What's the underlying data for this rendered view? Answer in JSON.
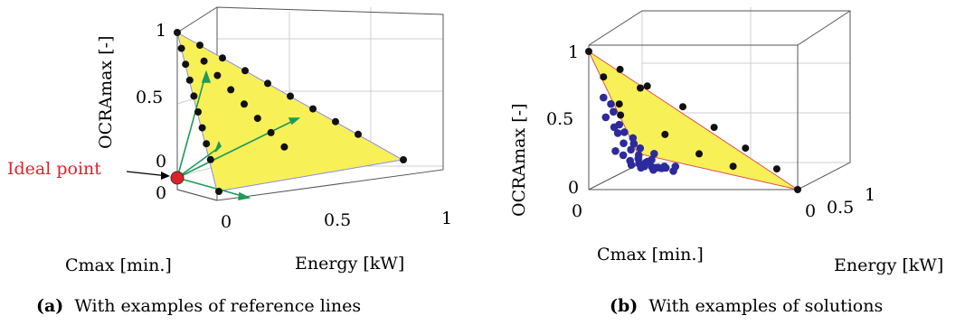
{
  "chart_data": [
    {
      "type": "scatter3d",
      "caption_tag": "(a)",
      "caption_text": "With examples of reference lines",
      "xlabel": "Cmax [min.]",
      "ylabel": "Energy [kW]",
      "zlabel": "OCRAmax [-]",
      "z_ticks": [
        "1",
        "0.5",
        "0"
      ],
      "x_ticks": [
        "0"
      ],
      "y_ticks": [
        "0",
        "0.5",
        "1"
      ],
      "annotation": "Ideal point",
      "surface_color": "#f7f057",
      "reference_line_color": "#1f9a5a",
      "ideal_point_color": "#e0202a",
      "reference_points": [
        [
          0.0,
          0.0,
          1.0
        ],
        [
          0.1,
          0.0,
          0.9
        ],
        [
          0.0,
          0.1,
          0.9
        ],
        [
          0.2,
          0.0,
          0.8
        ],
        [
          0.0,
          0.2,
          0.8
        ],
        [
          0.1,
          0.1,
          0.8
        ],
        [
          0.3,
          0.0,
          0.7
        ],
        [
          0.0,
          0.3,
          0.7
        ],
        [
          0.15,
          0.15,
          0.7
        ],
        [
          0.4,
          0.0,
          0.6
        ],
        [
          0.0,
          0.4,
          0.6
        ],
        [
          0.2,
          0.2,
          0.6
        ],
        [
          0.5,
          0.0,
          0.5
        ],
        [
          0.0,
          0.5,
          0.5
        ],
        [
          0.25,
          0.25,
          0.5
        ],
        [
          0.6,
          0.0,
          0.4
        ],
        [
          0.0,
          0.6,
          0.4
        ],
        [
          0.3,
          0.3,
          0.4
        ],
        [
          0.7,
          0.0,
          0.3
        ],
        [
          0.0,
          0.7,
          0.3
        ],
        [
          0.35,
          0.35,
          0.3
        ],
        [
          0.8,
          0.0,
          0.2
        ],
        [
          0.0,
          0.8,
          0.2
        ],
        [
          0.4,
          0.4,
          0.2
        ],
        [
          1.0,
          0.0,
          0.0
        ],
        [
          0.0,
          1.0,
          0.0
        ]
      ],
      "ideal_point": [
        0.0,
        0.0,
        0.0
      ]
    },
    {
      "type": "scatter3d",
      "caption_tag": "(b)",
      "caption_text": "With examples of solutions",
      "xlabel": "Cmax [min.]",
      "ylabel": "Energy [kW]",
      "zlabel": "OCRAmax [-]",
      "z_ticks": [
        "1",
        "0.5",
        "0"
      ],
      "x_ticks": [
        "0"
      ],
      "y_ticks": [
        "0",
        "0.5",
        "1"
      ],
      "surface_color": "#f7f057",
      "reference_point_color": "#111111",
      "solution_color": "#2d2a9b",
      "solutions": [
        [
          0.08,
          0.05,
          0.65
        ],
        [
          0.1,
          0.08,
          0.6
        ],
        [
          0.07,
          0.1,
          0.55
        ],
        [
          0.12,
          0.05,
          0.5
        ],
        [
          0.1,
          0.12,
          0.45
        ],
        [
          0.08,
          0.15,
          0.4
        ],
        [
          0.15,
          0.1,
          0.38
        ],
        [
          0.12,
          0.18,
          0.35
        ],
        [
          0.06,
          0.2,
          0.32
        ],
        [
          0.18,
          0.12,
          0.3
        ],
        [
          0.1,
          0.22,
          0.28
        ],
        [
          0.2,
          0.15,
          0.25
        ],
        [
          0.15,
          0.2,
          0.22
        ],
        [
          0.25,
          0.1,
          0.2
        ],
        [
          0.22,
          0.18,
          0.18
        ],
        [
          0.12,
          0.25,
          0.18
        ],
        [
          0.3,
          0.12,
          0.15
        ],
        [
          0.28,
          0.2,
          0.14
        ],
        [
          0.35,
          0.15,
          0.12
        ],
        [
          0.2,
          0.28,
          0.12
        ],
        [
          0.4,
          0.1,
          0.1
        ],
        [
          0.32,
          0.22,
          0.1
        ],
        [
          0.45,
          0.15,
          0.08
        ],
        [
          0.38,
          0.25,
          0.08
        ],
        [
          0.5,
          0.12,
          0.06
        ],
        [
          0.42,
          0.2,
          0.06
        ],
        [
          0.55,
          0.18,
          0.05
        ],
        [
          0.48,
          0.28,
          0.04
        ],
        [
          0.6,
          0.15,
          0.04
        ],
        [
          0.65,
          0.2,
          0.03
        ],
        [
          0.7,
          0.18,
          0.03
        ],
        [
          0.75,
          0.22,
          0.02
        ],
        [
          0.05,
          0.3,
          0.25
        ],
        [
          0.08,
          0.28,
          0.2
        ],
        [
          0.3,
          0.05,
          0.22
        ],
        [
          0.16,
          0.08,
          0.42
        ]
      ]
    }
  ]
}
